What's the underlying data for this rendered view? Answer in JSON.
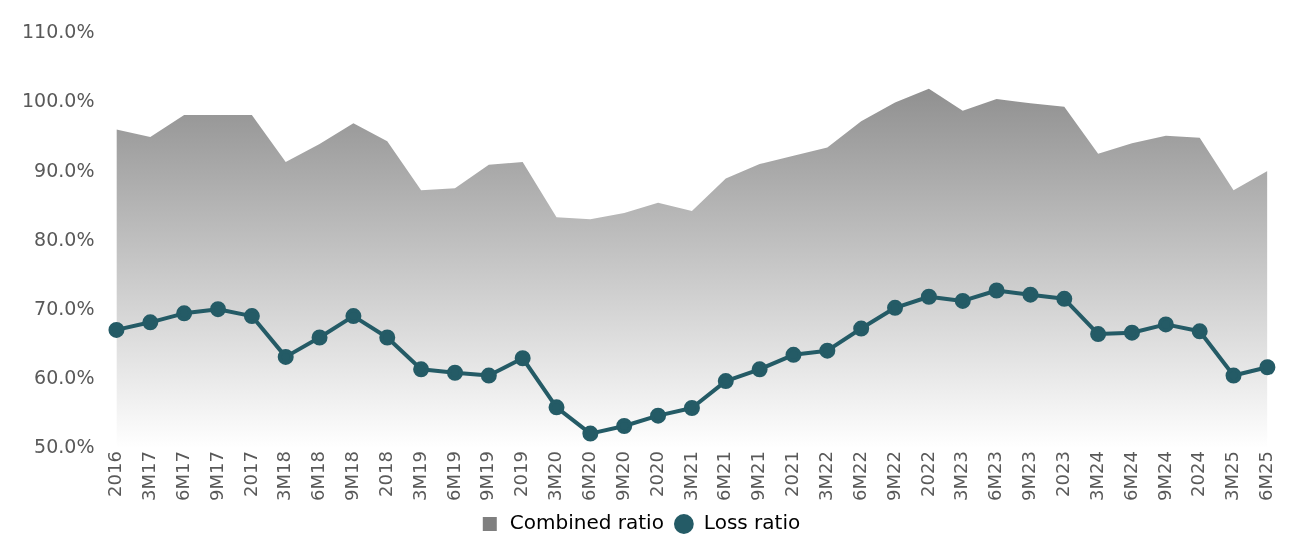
{
  "chart_data": {
    "type": "area",
    "categories": [
      "2016",
      "3M17",
      "6M17",
      "9M17",
      "2017",
      "3M18",
      "6M18",
      "9M18",
      "2018",
      "3M19",
      "6M19",
      "9M19",
      "2019",
      "3M20",
      "6M20",
      "9M20",
      "2020",
      "3M21",
      "6M21",
      "9M21",
      "2021",
      "3M22",
      "6M22",
      "9M22",
      "2022",
      "3M23",
      "6M23",
      "9M23",
      "2023",
      "3M24",
      "6M24",
      "9M24",
      "2024",
      "3M25",
      "6M25"
    ],
    "series": [
      {
        "name": "Combined ratio",
        "color": "#7f7f7f",
        "values": [
          96.1,
          95.0,
          98.2,
          98.2,
          98.2,
          91.4,
          94.0,
          97.0,
          94.4,
          87.3,
          87.6,
          91.0,
          91.4,
          83.4,
          83.1,
          84.0,
          85.5,
          84.3,
          89.0,
          91.1,
          92.3,
          93.5,
          97.3,
          100.0,
          102.0,
          98.8,
          100.5,
          99.9,
          99.4,
          92.6,
          94.1,
          95.2,
          94.9,
          87.3,
          90.1
        ]
      },
      {
        "name": "Loss ratio",
        "type": "line",
        "color": "#245b66",
        "marker": "circle",
        "values": [
          67.1,
          68.2,
          69.5,
          70.1,
          69.1,
          63.2,
          66.0,
          69.1,
          66.0,
          61.4,
          60.9,
          60.5,
          63.0,
          55.9,
          52.1,
          53.2,
          54.7,
          55.8,
          59.7,
          61.4,
          63.5,
          64.1,
          67.3,
          70.3,
          71.9,
          71.3,
          72.8,
          72.2,
          71.6,
          66.5,
          66.7,
          67.9,
          66.9,
          60.5,
          61.7
        ]
      }
    ],
    "ylim": [
      50,
      110
    ],
    "yticks": [
      {
        "value": 50,
        "label": "50.0%"
      },
      {
        "value": 60,
        "label": "60.0%"
      },
      {
        "value": 70,
        "label": "70.0%"
      },
      {
        "value": 80,
        "label": "80.0%"
      },
      {
        "value": 90,
        "label": "90.0%"
      },
      {
        "value": 100,
        "label": "100.0%"
      },
      {
        "value": 110,
        "label": "110.0%"
      }
    ],
    "grid": false,
    "legend": "bottom"
  }
}
